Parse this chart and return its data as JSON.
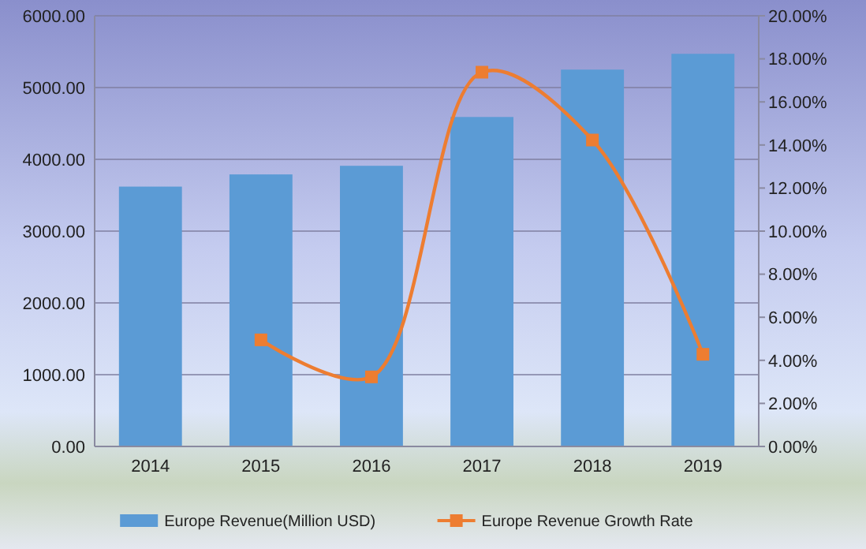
{
  "chart_data": {
    "type": "bar",
    "categories": [
      "2014",
      "2015",
      "2016",
      "2017",
      "2018",
      "2019"
    ],
    "series": [
      {
        "name": "Europe Revenue(Million USD)",
        "color": "#5b9bd5",
        "values": [
          3620,
          3790,
          3910,
          4590,
          5250,
          5470
        ]
      },
      {
        "name": "Europe Revenue Growth Rate",
        "type": "line",
        "axis": "y2",
        "color": "#ed7d31",
        "marker": "square",
        "values": [
          null,
          4.95,
          3.23,
          17.38,
          14.23,
          4.28
        ]
      }
    ],
    "ylim": [
      0,
      6000
    ],
    "yticks": [
      {
        "value": 0,
        "label": "0.00"
      },
      {
        "value": 1000,
        "label": "1000.00"
      },
      {
        "value": 2000,
        "label": "2000.00"
      },
      {
        "value": 3000,
        "label": "3000.00"
      },
      {
        "value": 4000,
        "label": "4000.00"
      },
      {
        "value": 5000,
        "label": "5000.00"
      },
      {
        "value": 6000,
        "label": "6000.00"
      }
    ],
    "y2lim": [
      0,
      20
    ],
    "y2ticks": [
      {
        "value": 0,
        "label": "0.00%"
      },
      {
        "value": 2,
        "label": "2.00%"
      },
      {
        "value": 4,
        "label": "4.00%"
      },
      {
        "value": 6,
        "label": "6.00%"
      },
      {
        "value": 8,
        "label": "8.00%"
      },
      {
        "value": 10,
        "label": "10.00%"
      },
      {
        "value": 12,
        "label": "12.00%"
      },
      {
        "value": 14,
        "label": "14.00%"
      },
      {
        "value": 16,
        "label": "16.00%"
      },
      {
        "value": 18,
        "label": "18.00%"
      },
      {
        "value": 20,
        "label": "20.00%"
      }
    ],
    "grid": "y",
    "legend": "bottom"
  }
}
